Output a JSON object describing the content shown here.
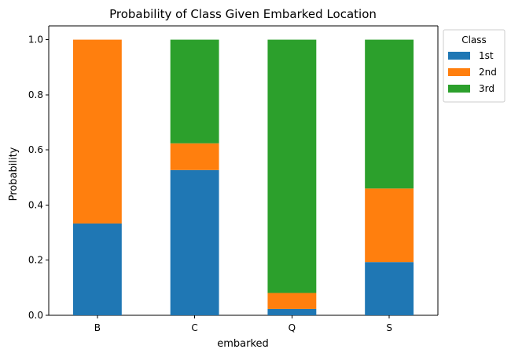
{
  "chart_data": {
    "type": "bar",
    "stacked": true,
    "title": "Probability of Class Given Embarked Location",
    "xlabel": "embarked",
    "ylabel": "Probability",
    "categories": [
      "B",
      "C",
      "Q",
      "S"
    ],
    "ylim": [
      0,
      1.05
    ],
    "yticks": [
      0.0,
      0.2,
      0.4,
      0.6,
      0.8,
      1.0
    ],
    "ytick_labels": [
      "0.0",
      "0.2",
      "0.4",
      "0.6",
      "0.8",
      "1.0"
    ],
    "grid": false,
    "legend": {
      "title": "Class",
      "placement": "outside-top-right"
    },
    "series": [
      {
        "name": "1st",
        "color": "#1f77b4",
        "values": [
          0.333,
          0.527,
          0.023,
          0.193
        ]
      },
      {
        "name": "2nd",
        "color": "#ff7f0e",
        "values": [
          0.667,
          0.097,
          0.058,
          0.267
        ]
      },
      {
        "name": "3rd",
        "color": "#2ca02c",
        "values": [
          0.0,
          0.376,
          0.919,
          0.54
        ]
      }
    ]
  }
}
